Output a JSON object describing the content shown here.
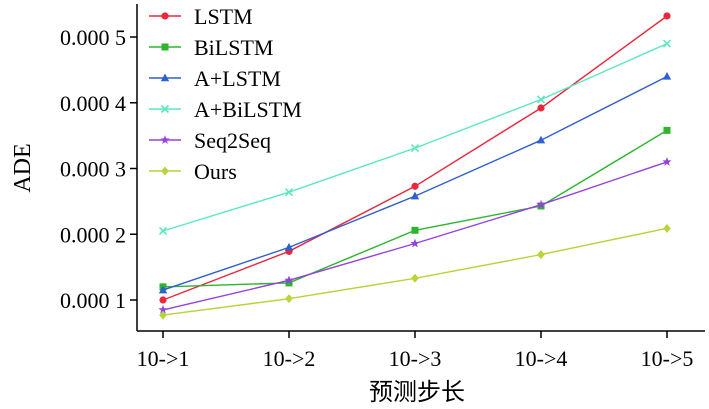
{
  "chart_data": {
    "type": "line",
    "title": "",
    "xlabel": "预测步长",
    "ylabel": "ADE",
    "categories": [
      "10->1",
      "10->2",
      "10->3",
      "10->4",
      "10->5"
    ],
    "ylim": [
      5e-05,
      0.00055
    ],
    "yticks": [
      {
        "value": 0.0001,
        "label": "0.000 1"
      },
      {
        "value": 0.0002,
        "label": "0.000 2"
      },
      {
        "value": 0.0003,
        "label": "0.000 3"
      },
      {
        "value": 0.0004,
        "label": "0.000 4"
      },
      {
        "value": 0.0005,
        "label": "0.000 5"
      }
    ],
    "legend_position": "top-left",
    "grid": false,
    "series": [
      {
        "name": "LSTM",
        "color": "#e8283c",
        "marker": "circle",
        "values": [
          0.0001,
          0.000174,
          0.000273,
          0.000392,
          0.000532
        ]
      },
      {
        "name": "BiLSTM",
        "color": "#2db52d",
        "marker": "square",
        "values": [
          0.00012,
          0.000126,
          0.000206,
          0.000243,
          0.000358
        ]
      },
      {
        "name": "A+LSTM",
        "color": "#2f5fd0",
        "marker": "triangle",
        "values": [
          0.000115,
          0.00018,
          0.000258,
          0.000343,
          0.00044
        ]
      },
      {
        "name": "A+BiLSTM",
        "color": "#5ce8bf",
        "marker": "x",
        "values": [
          0.000205,
          0.000264,
          0.000331,
          0.000405,
          0.00049
        ]
      },
      {
        "name": "Seq2Seq",
        "color": "#9540e0",
        "marker": "star",
        "values": [
          8.5e-05,
          0.00013,
          0.000186,
          0.000245,
          0.00031
        ]
      },
      {
        "name": "Ours",
        "color": "#b8d43a",
        "marker": "diamond",
        "values": [
          7.7e-05,
          0.000102,
          0.000133,
          0.000169,
          0.000209
        ]
      }
    ]
  }
}
